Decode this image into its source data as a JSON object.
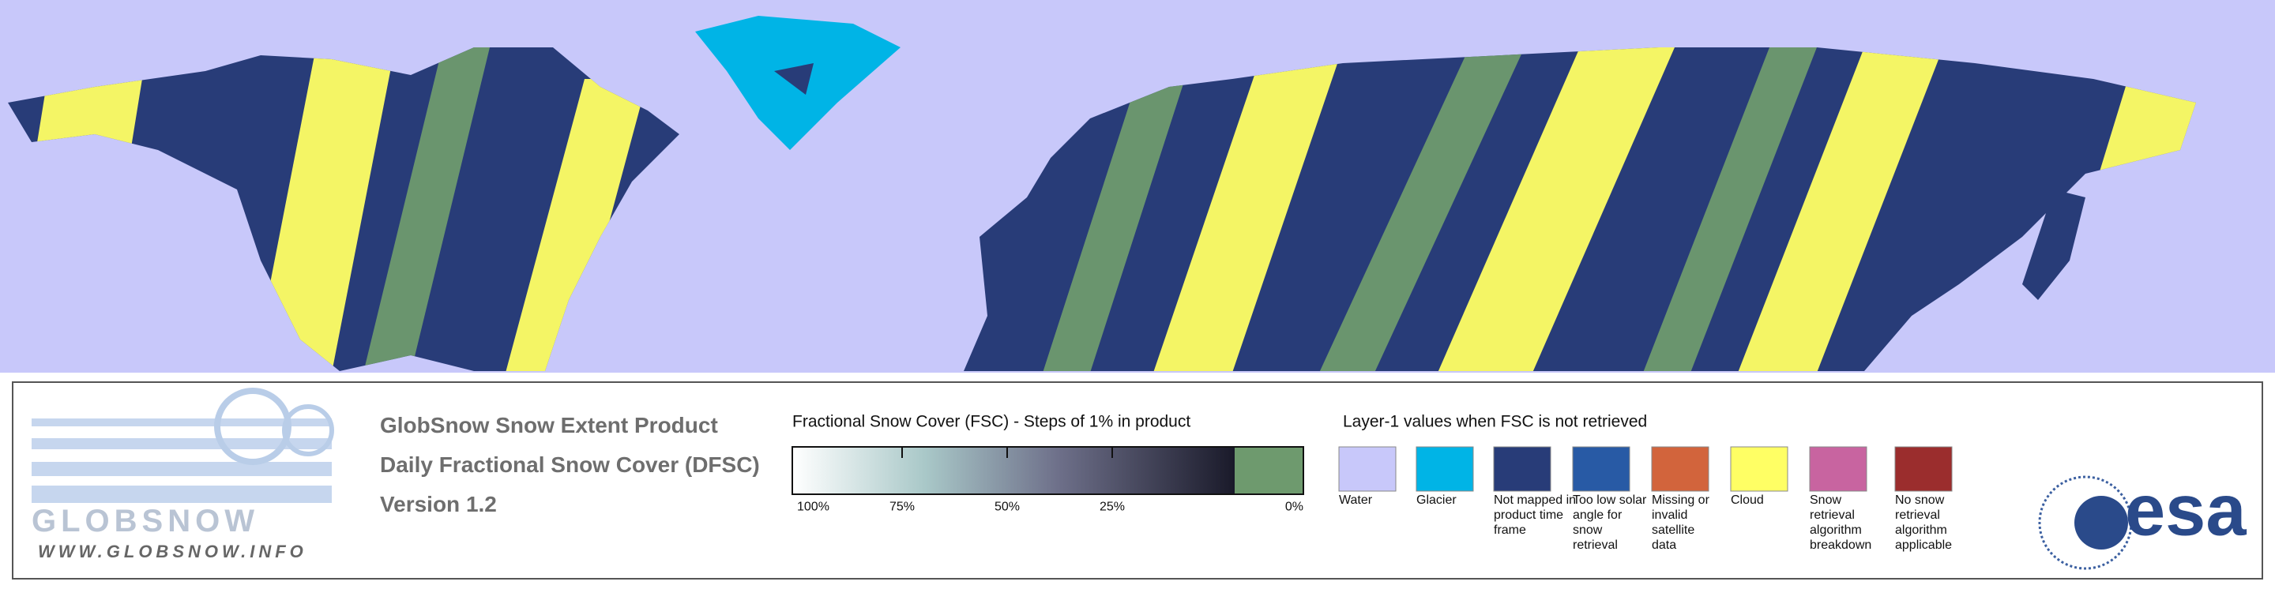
{
  "product": {
    "title_lines": [
      "GlobSnow Snow Extent Product",
      "Daily Fractional Snow Cover (DFSC)",
      "Version 1.2"
    ]
  },
  "logo": {
    "name": "GLOBSNOW",
    "url": "WWW.GLOBSNOW.INFO"
  },
  "colorbar": {
    "title": "Fractional Snow Cover (FSC) - Steps of 1% in product",
    "tick_labels": [
      "100%",
      "75%",
      "50%",
      "25%",
      "0%"
    ]
  },
  "legend": {
    "title": "Layer-1 values when FSC is not retrieved",
    "items": [
      {
        "label": "Water",
        "color": "#c8c8fa"
      },
      {
        "label": "Glacier",
        "color": "#00b4e6"
      },
      {
        "label": "Not mapped in product time frame",
        "color": "#283c78"
      },
      {
        "label": "Too low solar angle for snow retrieval",
        "color": "#285aa5"
      },
      {
        "label": "Missing or invalid satellite data",
        "color": "#d2643c"
      },
      {
        "label": "Cloud",
        "color": "#ffff64"
      },
      {
        "label": "Snow retrieval algorithm breakdown",
        "color": "#c864a0"
      },
      {
        "label": "No snow retrieval algorithm applicable",
        "color": "#9b2d2d"
      }
    ]
  },
  "esa_logo": "esa"
}
